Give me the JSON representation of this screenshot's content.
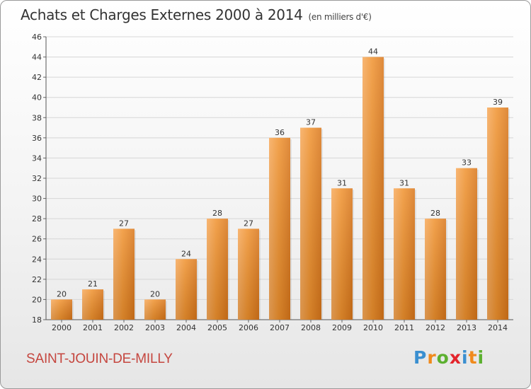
{
  "title": "Achats et Charges Externes 2000 à 2014",
  "subtitle": "(en milliers d'€)",
  "commune": "SAINT-JOUIN-DE-MILLY",
  "logo": {
    "letters": [
      "P",
      "r",
      "o",
      "x",
      "i",
      "t",
      "i"
    ],
    "colors": [
      "#3a8fd0",
      "#f08a1c",
      "#5cb030",
      "#e3252c",
      "#3a8fd0",
      "#f08a1c",
      "#5cb030"
    ]
  },
  "chart_data": {
    "type": "bar",
    "categories": [
      "2000",
      "2001",
      "2002",
      "2003",
      "2004",
      "2005",
      "2006",
      "2007",
      "2008",
      "2009",
      "2010",
      "2011",
      "2012",
      "2013",
      "2014"
    ],
    "values": [
      20,
      21,
      27,
      20,
      24,
      28,
      27,
      36,
      37,
      31,
      44,
      31,
      28,
      33,
      39
    ],
    "data_labels": [
      "20",
      "21",
      "27",
      "20",
      "24",
      "28",
      "27",
      "36",
      "37",
      "31",
      "44",
      "31",
      "28",
      "33",
      "39"
    ],
    "ylim": [
      18,
      46
    ],
    "yticks": [
      18,
      20,
      22,
      24,
      26,
      28,
      30,
      32,
      34,
      36,
      38,
      40,
      42,
      44,
      46
    ],
    "grid": true,
    "bar_color": "#f0922e",
    "bar_color_light": "#f7a95a",
    "bar_color_dark": "#d9761a"
  }
}
